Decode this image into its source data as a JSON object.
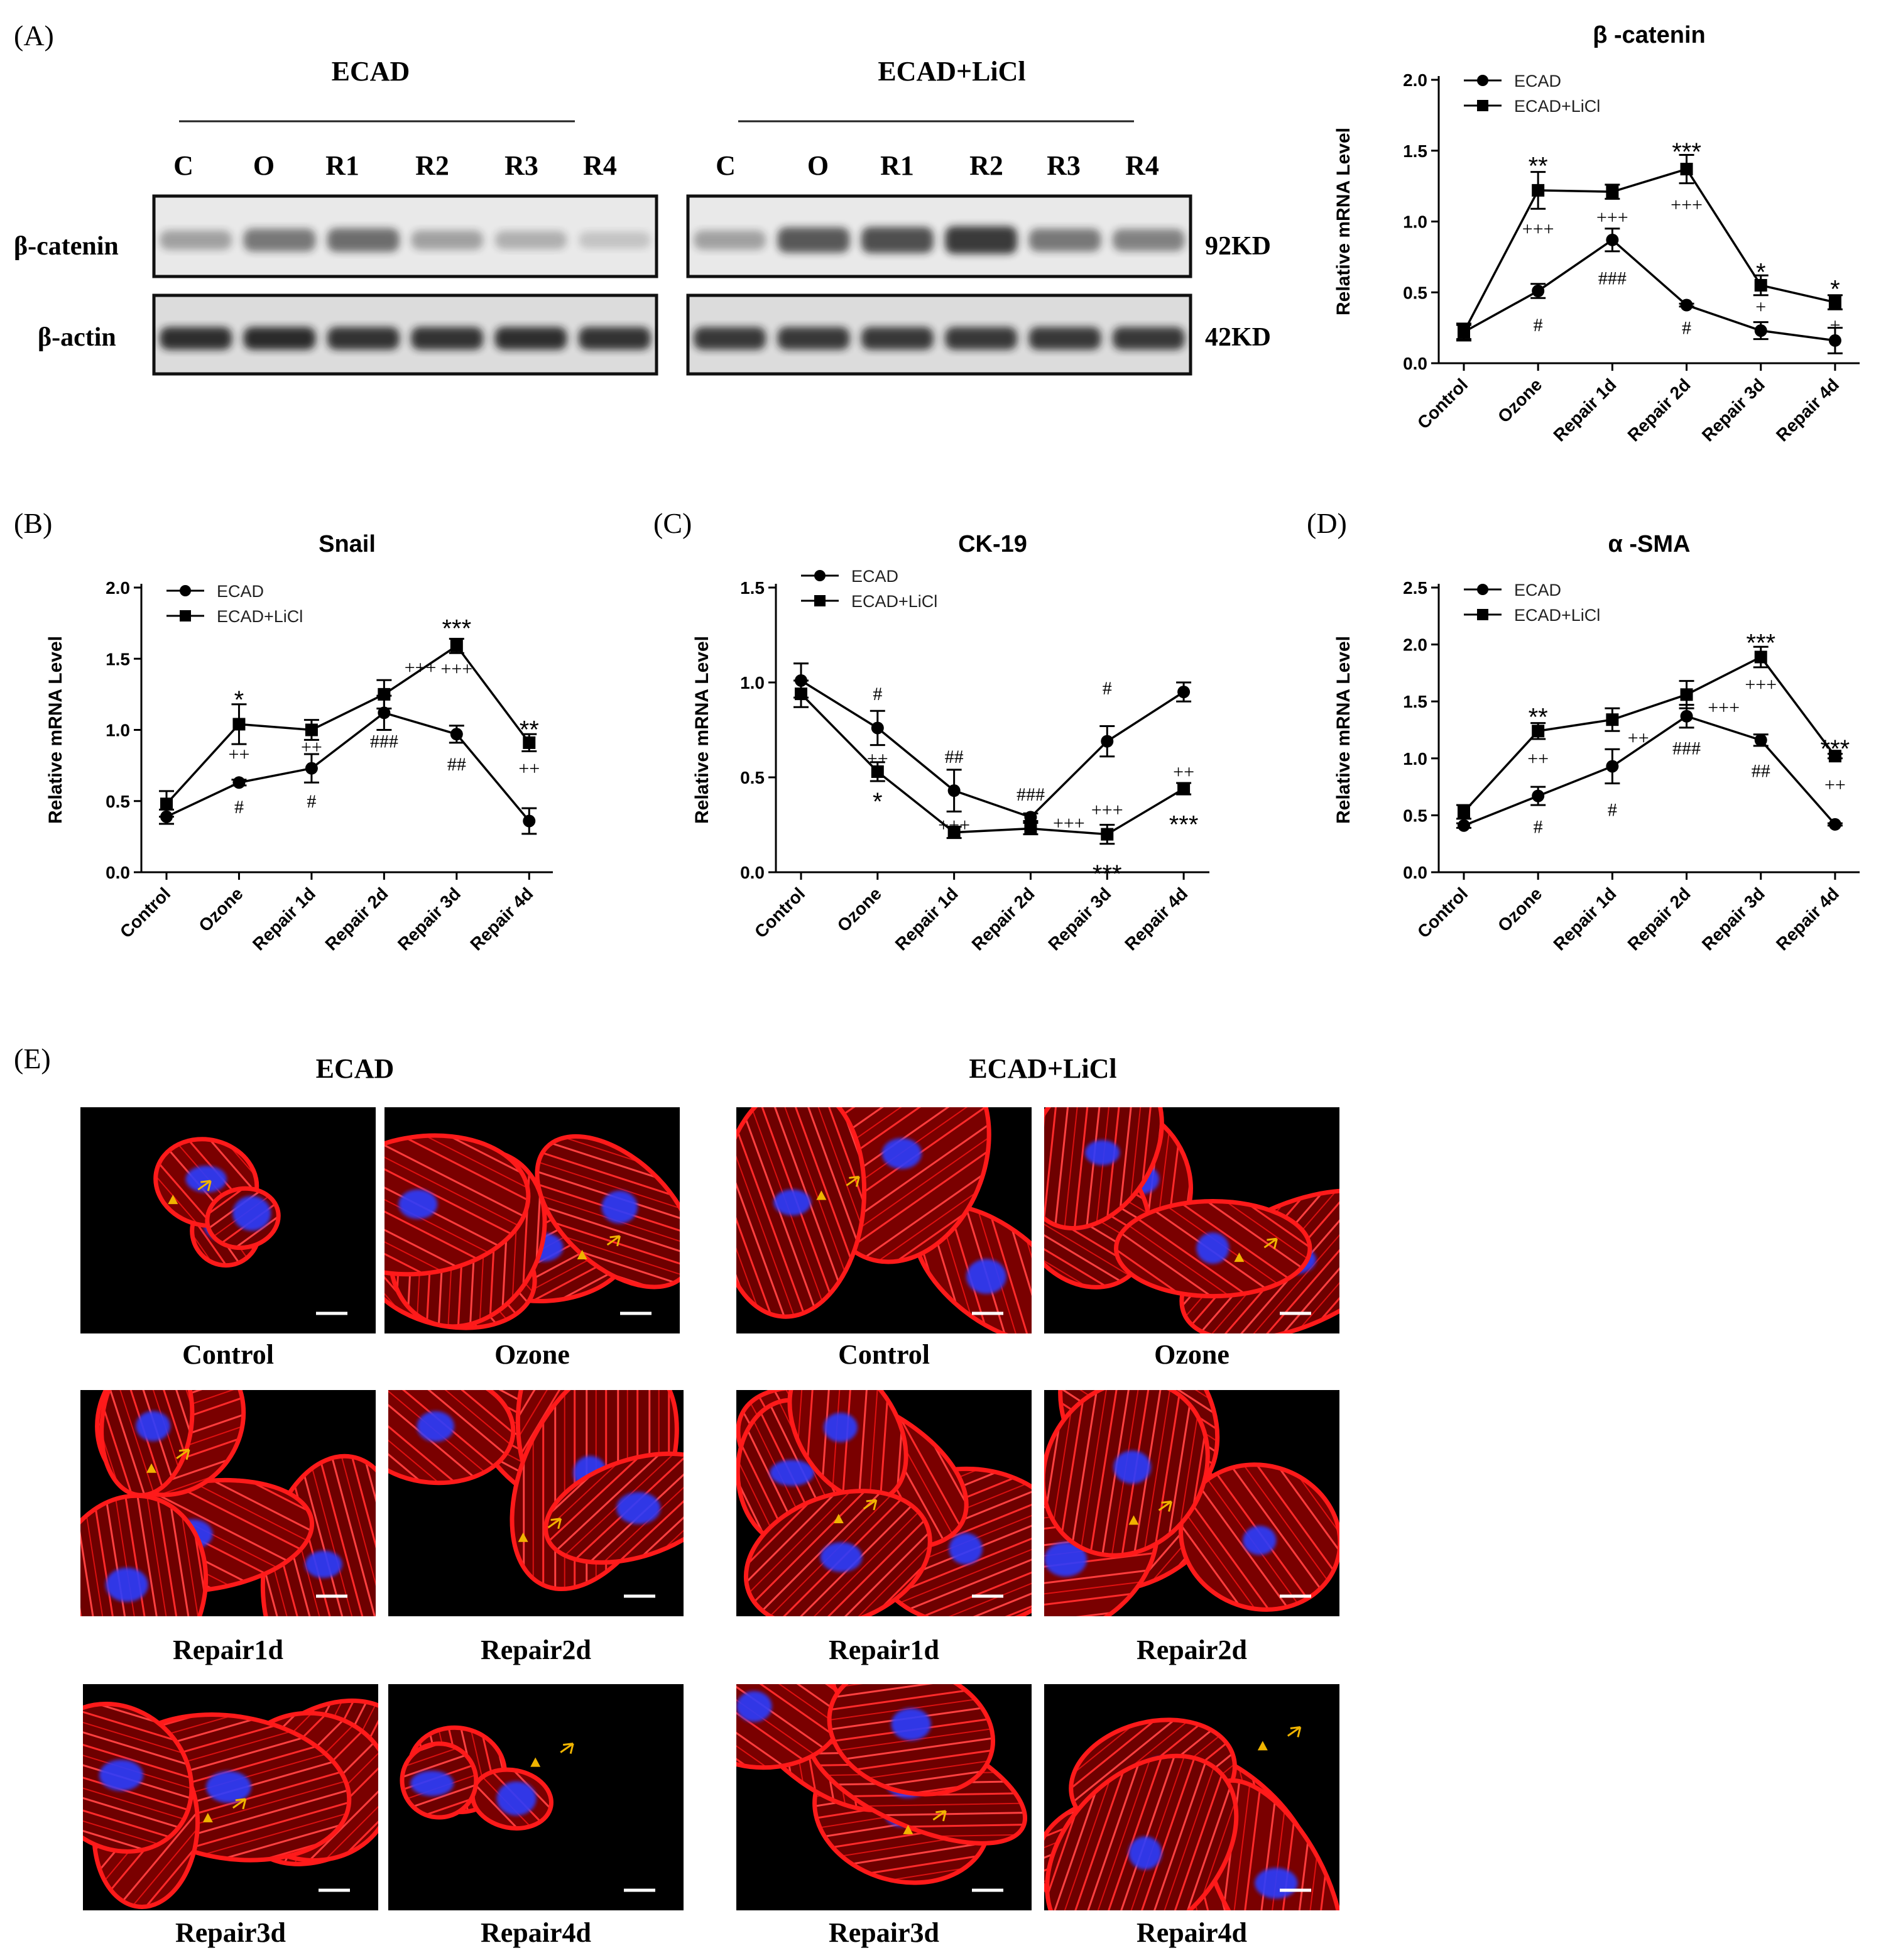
{
  "panel_letters": {
    "a": "(A)",
    "b": "(B)",
    "c": "(C)",
    "d": "(D)",
    "e": "(E)"
  },
  "western_blot": {
    "groups": [
      {
        "title": "ECAD",
        "lanes": [
          "C",
          "O",
          "R1",
          "R2",
          "R3",
          "R4"
        ]
      },
      {
        "title": "ECAD+LiCl",
        "lanes": [
          "C",
          "O",
          "R1",
          "R2",
          "R3",
          "R4"
        ]
      }
    ],
    "rows": [
      {
        "label": "β-catenin",
        "size": "92KD",
        "intensity": [
          [
            0.35,
            0.55,
            0.6,
            0.35,
            0.28,
            0.18
          ],
          [
            0.35,
            0.7,
            0.75,
            0.85,
            0.55,
            0.5
          ]
        ]
      },
      {
        "label": "β-actin",
        "size": "42KD",
        "intensity": [
          [
            0.9,
            0.92,
            0.88,
            0.88,
            0.9,
            0.88
          ],
          [
            0.85,
            0.85,
            0.85,
            0.85,
            0.85,
            0.85
          ]
        ]
      }
    ],
    "band_color": "#1a1a1a"
  },
  "chart_data": [
    {
      "type": "line",
      "panel": "A",
      "title": "β -catenin",
      "xlabel": "",
      "ylabel": "Relative mRNA Level",
      "categories": [
        "Control",
        "Ozone",
        "Repair 1d",
        "Repair 2d",
        "Repair 3d",
        "Repair 4d"
      ],
      "ylim": [
        0,
        2.0
      ],
      "yticks": [
        "0.0",
        "0.5",
        "1.0",
        "1.5",
        "2.0"
      ],
      "legend_position": "top-left",
      "series": [
        {
          "name": "ECAD",
          "marker": "circle",
          "values": [
            0.22,
            0.51,
            0.87,
            0.41,
            0.23,
            0.16
          ],
          "errors": [
            0.05,
            0.05,
            0.08,
            0.01,
            0.06,
            0.09
          ]
        },
        {
          "name": "ECAD+LiCl",
          "marker": "square",
          "values": [
            0.22,
            1.22,
            1.21,
            1.37,
            0.55,
            0.43
          ],
          "errors": [
            0.06,
            0.13,
            0.05,
            0.1,
            0.07,
            0.05
          ]
        }
      ],
      "annotations": [
        {
          "category": 1,
          "value": 1.43,
          "text": "**"
        },
        {
          "category": 1,
          "value": 0.95,
          "text": "+++"
        },
        {
          "category": 1,
          "value": 0.27,
          "text": "#"
        },
        {
          "category": 2,
          "value": 1.03,
          "text": "+++"
        },
        {
          "category": 2,
          "value": 0.6,
          "text": "###"
        },
        {
          "category": 3,
          "value": 1.53,
          "text": "***"
        },
        {
          "category": 3,
          "value": 1.12,
          "text": "+++"
        },
        {
          "category": 3,
          "value": 0.25,
          "text": "#"
        },
        {
          "category": 4,
          "value": 0.68,
          "text": "*"
        },
        {
          "category": 4,
          "value": 0.4,
          "text": "+"
        },
        {
          "category": 5,
          "value": 0.56,
          "text": "*"
        },
        {
          "category": 5,
          "value": 0.27,
          "text": "+"
        }
      ]
    },
    {
      "type": "line",
      "panel": "B",
      "title": "Snail",
      "xlabel": "",
      "ylabel": "Relative mRNA Level",
      "categories": [
        "Control",
        "Ozone",
        "Repair 1d",
        "Repair 2d",
        "Repair 3d",
        "Repair 4d"
      ],
      "ylim": [
        0,
        2.0
      ],
      "yticks": [
        "0.0",
        "0.5",
        "1.0",
        "1.5",
        "2.0"
      ],
      "legend_position": "top-left",
      "series": [
        {
          "name": "ECAD",
          "marker": "circle",
          "values": [
            0.39,
            0.63,
            0.73,
            1.12,
            0.97,
            0.36
          ],
          "errors": [
            0.05,
            0.02,
            0.1,
            0.12,
            0.06,
            0.09
          ]
        },
        {
          "name": "ECAD+LiCl",
          "marker": "square",
          "values": [
            0.48,
            1.04,
            1.0,
            1.25,
            1.59,
            0.91
          ],
          "errors": [
            0.09,
            0.14,
            0.07,
            0.1,
            0.05,
            0.06
          ]
        }
      ],
      "annotations": [
        {
          "category": 1,
          "value": 1.25,
          "text": "*"
        },
        {
          "category": 1,
          "value": 0.83,
          "text": "++"
        },
        {
          "category": 1,
          "value": 0.46,
          "text": "#"
        },
        {
          "category": 2,
          "value": 0.88,
          "text": "++"
        },
        {
          "category": 2,
          "value": 0.5,
          "text": "#"
        },
        {
          "category": 3,
          "value": 0.92,
          "text": "###"
        },
        {
          "category": 3,
          "value": 1.44,
          "text": "+++",
          "dx": 0.5
        },
        {
          "category": 4,
          "value": 1.75,
          "text": "***"
        },
        {
          "category": 4,
          "value": 1.43,
          "text": "+++"
        },
        {
          "category": 4,
          "value": 0.76,
          "text": "##"
        },
        {
          "category": 5,
          "value": 1.04,
          "text": "**"
        },
        {
          "category": 5,
          "value": 0.73,
          "text": "++"
        }
      ]
    },
    {
      "type": "line",
      "panel": "C",
      "title": "CK-19",
      "xlabel": "",
      "ylabel": "Relative mRNA Level",
      "categories": [
        "Control",
        "Ozone",
        "Repair 1d",
        "Repair 2d",
        "Repair 3d",
        "Repair 4d"
      ],
      "ylim": [
        0,
        1.5
      ],
      "yticks": [
        "0.0",
        "0.5",
        "1.0",
        "1.5"
      ],
      "legend_position": "top-left",
      "series": [
        {
          "name": "ECAD",
          "marker": "circle",
          "values": [
            1.01,
            0.76,
            0.43,
            0.29,
            0.69,
            0.95
          ],
          "errors": [
            0.09,
            0.09,
            0.11,
            0.02,
            0.08,
            0.05
          ]
        },
        {
          "name": "ECAD+LiCl",
          "marker": "square",
          "values": [
            0.94,
            0.53,
            0.21,
            0.23,
            0.2,
            0.44
          ],
          "errors": [
            0.07,
            0.05,
            0.03,
            0.03,
            0.05,
            0.03
          ]
        }
      ],
      "annotations": [
        {
          "category": 1,
          "value": 0.94,
          "text": "#"
        },
        {
          "category": 1,
          "value": 0.6,
          "text": "++"
        },
        {
          "category": 1,
          "value": 0.4,
          "text": "*"
        },
        {
          "category": 2,
          "value": 0.61,
          "text": "##"
        },
        {
          "category": 2,
          "value": 0.25,
          "text": "+++"
        },
        {
          "category": 3,
          "value": 0.41,
          "text": "###"
        },
        {
          "category": 3,
          "value": 0.26,
          "text": "+++",
          "dx": 0.5
        },
        {
          "category": 4,
          "value": 0.97,
          "text": "#"
        },
        {
          "category": 4,
          "value": 0.33,
          "text": "+++"
        },
        {
          "category": 4,
          "value": 0.02,
          "text": "***"
        },
        {
          "category": 5,
          "value": 0.53,
          "text": "++"
        },
        {
          "category": 5,
          "value": 0.28,
          "text": "***"
        }
      ]
    },
    {
      "type": "line",
      "panel": "D",
      "title": "α -SMA",
      "xlabel": "",
      "ylabel": "Relative mRNA Level",
      "categories": [
        "Control",
        "Ozone",
        "Repair 1d",
        "Repair 2d",
        "Repair 3d",
        "Repair 4d"
      ],
      "ylim": [
        0,
        2.5
      ],
      "yticks": [
        "0.0",
        "0.5",
        "1.0",
        "1.5",
        "2.0",
        "2.5"
      ],
      "legend_position": "top-left",
      "series": [
        {
          "name": "ECAD",
          "marker": "circle",
          "values": [
            0.41,
            0.67,
            0.93,
            1.37,
            1.16,
            0.42
          ],
          "errors": [
            0.02,
            0.08,
            0.15,
            0.1,
            0.05,
            0.01
          ]
        },
        {
          "name": "ECAD+LiCl",
          "marker": "square",
          "values": [
            0.53,
            1.24,
            1.34,
            1.56,
            1.89,
            1.02
          ],
          "errors": [
            0.06,
            0.07,
            0.1,
            0.12,
            0.09,
            0.02
          ]
        }
      ],
      "annotations": [
        {
          "category": 1,
          "value": 1.41,
          "text": "**"
        },
        {
          "category": 1,
          "value": 1.0,
          "text": "++"
        },
        {
          "category": 1,
          "value": 0.4,
          "text": "#"
        },
        {
          "category": 2,
          "value": 1.18,
          "text": "++",
          "dx": 0.35
        },
        {
          "category": 2,
          "value": 0.55,
          "text": "#"
        },
        {
          "category": 3,
          "value": 1.09,
          "text": "###"
        },
        {
          "category": 3,
          "value": 1.45,
          "text": "+++",
          "dx": 0.5
        },
        {
          "category": 4,
          "value": 2.06,
          "text": "***"
        },
        {
          "category": 4,
          "value": 1.65,
          "text": "+++"
        },
        {
          "category": 4,
          "value": 0.89,
          "text": "##"
        },
        {
          "category": 5,
          "value": 1.13,
          "text": "***"
        },
        {
          "category": 5,
          "value": 0.77,
          "text": "++"
        }
      ]
    }
  ],
  "immunofluorescence": {
    "groups": [
      {
        "title": "ECAD",
        "labels": [
          "Control",
          "Ozone",
          "Repair1d",
          "Repair2d",
          "Repair3d",
          "Repair4d"
        ]
      },
      {
        "title": "ECAD+LiCl",
        "labels": [
          "Control",
          "Ozone",
          "Repair1d",
          "Repair2d",
          "Repair3d",
          "Repair4d"
        ]
      }
    ],
    "cytoskeleton_color": "#ff1a1a",
    "nucleus_color": "#2a3cff",
    "marker_color": "#f0b400"
  }
}
